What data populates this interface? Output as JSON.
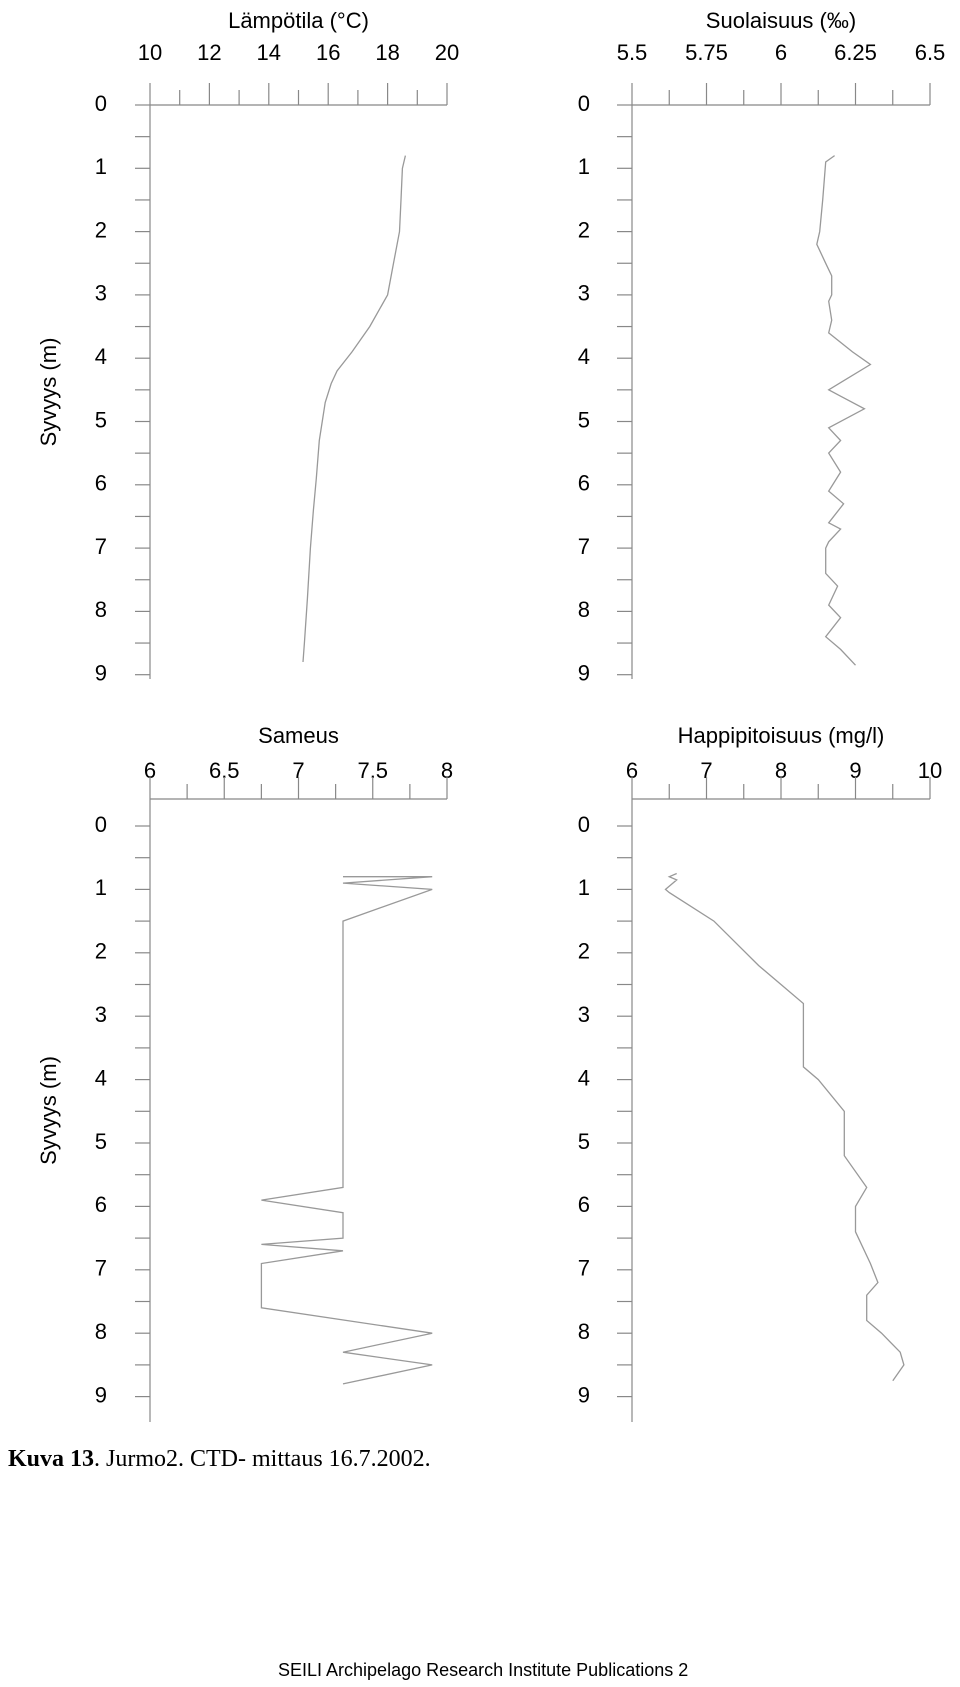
{
  "chart_data": [
    {
      "type": "line",
      "title": "Lämpötila (°C)",
      "ylabel": "Syvyys (m)",
      "x_ticks": [
        "10",
        "12",
        "14",
        "16",
        "18",
        "20"
      ],
      "y_ticks": [
        "0",
        "1",
        "2",
        "3",
        "4",
        "5",
        "6",
        "7",
        "8",
        "9"
      ],
      "xlim": [
        10,
        20
      ],
      "ylim": [
        0,
        9
      ],
      "y_inverted": true,
      "grid": false,
      "series": [
        {
          "x": [
            18.6,
            18.5,
            18.45,
            18.4,
            18.2,
            18.0,
            17.4,
            16.8,
            16.3,
            16.1,
            15.9,
            15.7,
            15.6,
            15.5,
            15.4,
            15.3,
            15.2,
            15.15
          ],
          "y": [
            0.8,
            1.0,
            1.5,
            2.0,
            2.5,
            3.0,
            3.5,
            3.9,
            4.2,
            4.4,
            4.7,
            5.3,
            5.9,
            6.4,
            7.0,
            7.8,
            8.5,
            8.8
          ]
        }
      ]
    },
    {
      "type": "line",
      "title": "Suolaisuus (‰)",
      "ylabel": "",
      "x_ticks": [
        "5.5",
        "5.75",
        "6",
        "6.25",
        "6.5"
      ],
      "y_ticks": [
        "0",
        "1",
        "2",
        "3",
        "4",
        "5",
        "6",
        "7",
        "8",
        "9"
      ],
      "xlim": [
        5.5,
        6.5
      ],
      "ylim": [
        0,
        9
      ],
      "y_inverted": true,
      "grid": false,
      "series": [
        {
          "x": [
            6.18,
            6.15,
            6.14,
            6.13,
            6.12,
            6.15,
            6.17,
            6.17,
            6.16,
            6.17,
            6.16,
            6.24,
            6.3,
            6.16,
            6.2,
            6.28,
            6.16,
            6.2,
            6.16,
            6.2,
            6.16,
            6.21,
            6.16,
            6.2,
            6.16,
            6.15,
            6.15,
            6.19,
            6.16,
            6.2,
            6.15,
            6.2,
            6.25
          ],
          "y": [
            0.8,
            0.9,
            1.5,
            2.0,
            2.2,
            2.5,
            2.7,
            3.0,
            3.1,
            3.4,
            3.6,
            3.9,
            4.1,
            4.5,
            4.6,
            4.8,
            5.1,
            5.3,
            5.5,
            5.8,
            6.1,
            6.3,
            6.6,
            6.7,
            6.9,
            7.0,
            7.4,
            7.6,
            7.9,
            8.1,
            8.4,
            8.6,
            8.85
          ]
        }
      ]
    },
    {
      "type": "line",
      "title": "Sameus",
      "ylabel": "Syvyys (m)",
      "x_ticks": [
        "6",
        "6.5",
        "7",
        "7.5",
        "8"
      ],
      "y_ticks": [
        "0",
        "1",
        "2",
        "3",
        "4",
        "5",
        "6",
        "7",
        "8",
        "9"
      ],
      "xlim": [
        6,
        8
      ],
      "ylim": [
        0,
        9
      ],
      "y_inverted": true,
      "grid": false,
      "series": [
        {
          "x": [
            7.3,
            7.9,
            7.3,
            7.9,
            7.3,
            7.3,
            6.75,
            7.3,
            7.3,
            6.75,
            7.3,
            6.75,
            6.75,
            7.9,
            7.3,
            7.9,
            7.3
          ],
          "y": [
            0.8,
            0.8,
            0.9,
            1.0,
            1.5,
            5.7,
            5.9,
            6.1,
            6.5,
            6.6,
            6.7,
            6.9,
            7.6,
            8.0,
            8.3,
            8.5,
            8.8
          ]
        }
      ]
    },
    {
      "type": "line",
      "title": "Happipitoisuus (mg/l)",
      "ylabel": "",
      "x_ticks": [
        "6",
        "7",
        "8",
        "9",
        "10"
      ],
      "y_ticks": [
        "0",
        "1",
        "2",
        "3",
        "4",
        "5",
        "6",
        "7",
        "8",
        "9"
      ],
      "xlim": [
        6,
        10
      ],
      "ylim": [
        0,
        9
      ],
      "y_inverted": true,
      "grid": false,
      "series": [
        {
          "x": [
            6.6,
            6.5,
            6.6,
            6.45,
            6.5,
            7.1,
            7.7,
            8.0,
            8.3,
            8.3,
            8.3,
            8.3,
            8.5,
            8.85,
            8.85,
            8.85,
            9.15,
            9.0,
            9.0,
            9.2,
            9.3,
            9.15,
            9.15,
            9.35,
            9.6,
            9.65,
            9.5
          ],
          "y": [
            0.75,
            0.8,
            0.85,
            1.0,
            1.05,
            1.5,
            2.2,
            2.5,
            2.8,
            3.2,
            3.7,
            3.8,
            4.0,
            4.5,
            5.0,
            5.2,
            5.7,
            6.0,
            6.4,
            6.9,
            7.2,
            7.4,
            7.8,
            8.0,
            8.3,
            8.5,
            8.75
          ]
        }
      ]
    }
  ],
  "caption": {
    "label": "Kuva 13",
    "text": ". Jurmo2. CTD- mittaus 16.7.2002."
  },
  "footer": "SEILI Archipelago Research Institute Publications 2"
}
